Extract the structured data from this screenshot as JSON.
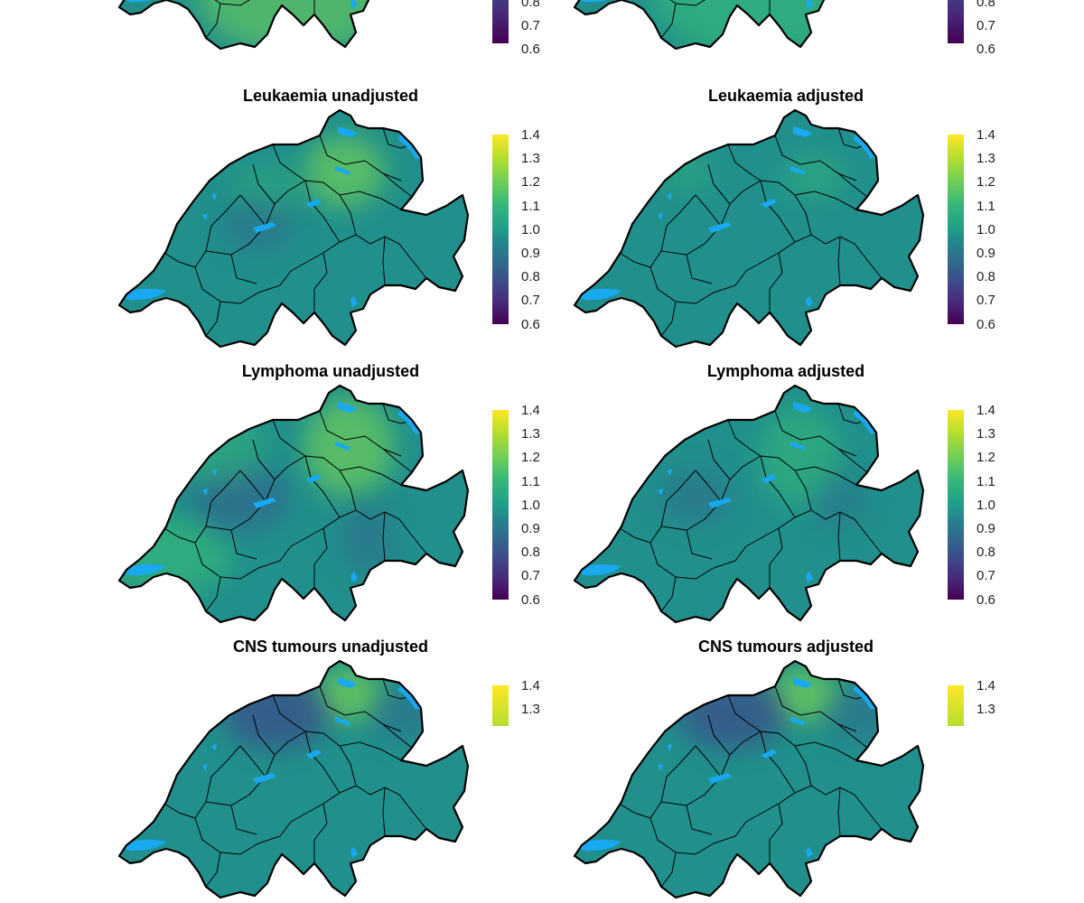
{
  "colors": {
    "ocean": "#ffffff",
    "land_mid": "#21908c",
    "lake": "#18a9f0",
    "border": "#000000",
    "palette": [
      "#440154",
      "#482878",
      "#3e4a89",
      "#31688e",
      "#26828e",
      "#1f9e89",
      "#35b779",
      "#6ece58",
      "#b5de2b",
      "#fde725"
    ]
  },
  "legend": {
    "labels": [
      "1.4",
      "1.3",
      "1.2",
      "1.1",
      "1.0",
      "0.9",
      "0.8",
      "0.7",
      "0.6"
    ],
    "partial_top_labels": [
      "0.8",
      "0.7",
      "0.6"
    ],
    "partial_bottom_labels": [
      "1.4",
      "1.3"
    ]
  },
  "panels": [
    {
      "id": "top-left-partial",
      "title": ""
    },
    {
      "id": "top-right-partial",
      "title": ""
    },
    {
      "id": "leukaemia-unadjusted",
      "title": "Leukaemia unadjusted"
    },
    {
      "id": "leukaemia-adjusted",
      "title": "Leukaemia adjusted"
    },
    {
      "id": "lymphoma-unadjusted",
      "title": "Lymphoma unadjusted"
    },
    {
      "id": "lymphoma-adjusted",
      "title": "Lymphoma adjusted"
    },
    {
      "id": "cns-unadjusted",
      "title": "CNS tumours unadjusted"
    },
    {
      "id": "cns-adjusted",
      "title": "CNS tumours adjusted"
    }
  ]
}
